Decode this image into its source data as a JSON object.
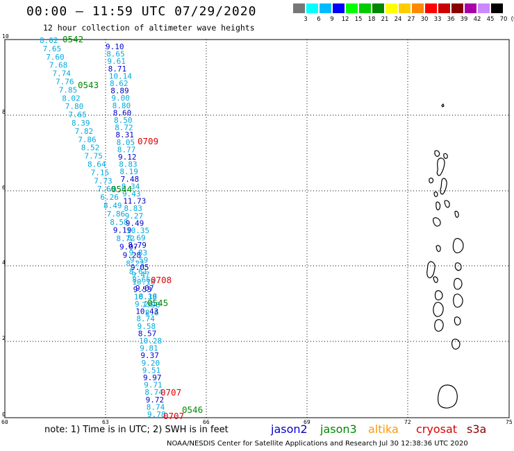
{
  "title": "00:00 – 11:59 UTC 07/29/2020",
  "subtitle": "12 hour collection of altimeter wave heights",
  "note": "note: 1) Time is in UTC; 2) SWH is in feet",
  "footer": "NOAA/NESDIS Center for Satellite Applications and Research   Jul 30 12:38:36 UTC 2020",
  "satellites": [
    {
      "name": "jason2",
      "color": "#0000cc"
    },
    {
      "name": "jason3",
      "color": "#008800"
    },
    {
      "name": "altika",
      "color": "#ff9900"
    },
    {
      "name": "cryosat",
      "color": "#dd0000"
    },
    {
      "name": "s3a",
      "color": "#880000"
    }
  ],
  "legend": {
    "unit": "(ft)",
    "colors": [
      "#777777",
      "#00ffff",
      "#00bbff",
      "#0000ff",
      "#00ff00",
      "#00cc00",
      "#008800",
      "#ffff00",
      "#ffcc00",
      "#ff8800",
      "#ff0000",
      "#cc0000",
      "#880000",
      "#aa00aa",
      "#cc88ff",
      "#000000"
    ],
    "labels": [
      "3",
      "6",
      "9",
      "12",
      "15",
      "18",
      "21",
      "24",
      "27",
      "30",
      "33",
      "36",
      "39",
      "42",
      "45",
      "70"
    ]
  },
  "axes": {
    "lon_labels": [
      "60",
      "63",
      "66",
      "69",
      "72",
      "75"
    ],
    "lat_labels": [
      "0",
      "2",
      "4",
      "6",
      "8",
      "10"
    ]
  },
  "times": [
    {
      "label": "0542",
      "color": "#008800"
    },
    {
      "label": "0543",
      "color": "#008800"
    },
    {
      "label": "0709",
      "color": "#dd0000"
    },
    {
      "label": "0544",
      "color": "#008800"
    },
    {
      "label": "0708",
      "color": "#dd0000"
    },
    {
      "label": "0545",
      "color": "#008800"
    },
    {
      "label": "0707",
      "color": "#dd0000"
    },
    {
      "label": "0546",
      "color": "#008800"
    },
    {
      "label": "0707",
      "color": "#dd0000"
    }
  ],
  "track_cyan": [
    "8.02",
    "7.65",
    "7.60",
    "7.68",
    "7.74",
    "7.76",
    "7.85",
    "8.02",
    "7.80",
    "7.65",
    "8.39",
    "7.82",
    "7.86",
    "8.52",
    "7.75",
    "8.64",
    "7.15",
    "7.73",
    "7.60",
    "6.26",
    "8.49",
    "7.86",
    "8.58",
    "9.19",
    "8.72",
    "9.07",
    "9.28",
    "8.23",
    "8.61",
    "8.66",
    "9.07",
    "8.18",
    "7.98",
    "8.6"
  ],
  "track_blue": [
    "9.10",
    "8.65",
    "9.61",
    "8.71",
    "10.14",
    "8.62",
    "8.89",
    "9.00",
    "8.80",
    "8.60",
    "8.50",
    "8.72",
    "8.31",
    "8.05",
    "8.77",
    "9.12",
    "8.83",
    "8.19",
    "7.48",
    "8.34",
    "9.43",
    "11.73",
    "8.83",
    "9.27",
    "9.49",
    "10.35",
    "8.69",
    "8.79",
    "9.83",
    "9.59",
    "9.05",
    "9.47",
    "10.18",
    "9.53",
    "10.39",
    "9.26",
    "10.43",
    "8.74",
    "9.58",
    "8.57",
    "10.28",
    "9.81",
    "9.37",
    "9.20",
    "9.51",
    "9.97",
    "9.71",
    "8.74",
    "9.72",
    "8.74",
    "9.78"
  ]
}
